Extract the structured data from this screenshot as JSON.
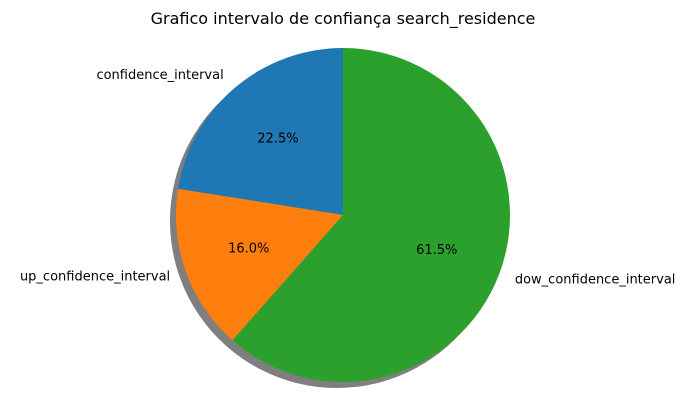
{
  "chart_data": {
    "type": "pie",
    "title": "Grafico intervalo de confiança search_residence",
    "slices": [
      {
        "label": "confidence_interval",
        "value": 22.5,
        "pct_label": "22.5%",
        "color": "#1f77b4"
      },
      {
        "label": "up_confidence_interval",
        "value": 16.0,
        "pct_label": "16.0%",
        "color": "#ff7f0e"
      },
      {
        "label": "dow_confidence_interval",
        "value": 61.5,
        "pct_label": "61.5%",
        "color": "#2ca02c"
      }
    ],
    "start_angle_deg": 90,
    "direction": "counterclockwise",
    "shadow": true
  }
}
